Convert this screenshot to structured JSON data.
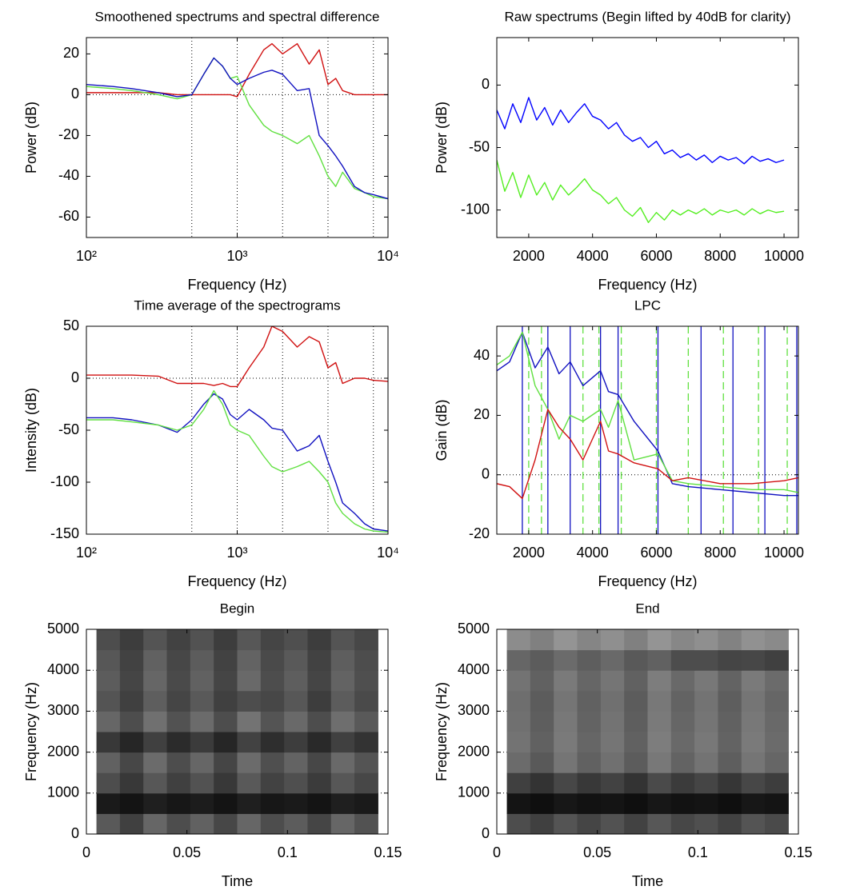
{
  "chart_data": [
    {
      "type": "line",
      "title": "Smoothened spectrums and spectral difference",
      "xlabel": "Frequency (Hz)",
      "ylabel": "Power (dB)",
      "xscale": "log",
      "xlim": [
        100,
        10000
      ],
      "xticks": [
        {
          "value": 100,
          "label": "10²"
        },
        {
          "value": 1000,
          "label": "10³"
        },
        {
          "value": 10000,
          "label": "10⁴"
        }
      ],
      "ylim": [
        -70,
        28
      ],
      "yticks": [
        20,
        0,
        -20,
        -40,
        -60
      ],
      "vlines": [
        500,
        1000,
        2000,
        4000,
        8000
      ],
      "hlines": [
        0
      ],
      "x": [
        100,
        150,
        200,
        300,
        400,
        500,
        600,
        700,
        800,
        900,
        1000,
        1200,
        1500,
        1700,
        2000,
        2500,
        3000,
        3500,
        4000,
        4500,
        5000,
        6000,
        7000,
        8000,
        10000
      ],
      "series": [
        {
          "color": "#d01010",
          "values": [
            1,
            1,
            1,
            1,
            0,
            0,
            0,
            0,
            0,
            0,
            -1,
            10,
            22,
            25,
            20,
            25,
            15,
            22,
            5,
            8,
            2,
            0,
            0,
            0,
            0
          ]
        },
        {
          "color": "#60e040",
          "values": [
            4,
            3,
            2,
            0,
            -2,
            0,
            10,
            18,
            14,
            8,
            9,
            -5,
            -15,
            -18,
            -20,
            -24,
            -20,
            -30,
            -40,
            -45,
            -38,
            -46,
            -48,
            -50,
            -51
          ]
        },
        {
          "color": "#1010c0",
          "values": [
            5,
            4,
            3,
            1,
            -1,
            0,
            10,
            18,
            14,
            8,
            5,
            8,
            11,
            12,
            10,
            2,
            3,
            -20,
            -25,
            -30,
            -35,
            -45,
            -48,
            -49,
            -51
          ]
        }
      ]
    },
    {
      "type": "line",
      "title": "Raw spectrums (Begin lifted by 40dB for clarity)",
      "xlabel": "Frequency (Hz)",
      "ylabel": "Power (dB)",
      "xlim": [
        1000,
        10450
      ],
      "xticks": [
        2000,
        4000,
        6000,
        8000,
        10000
      ],
      "ylim": [
        -122,
        38
      ],
      "yticks": [
        0,
        -50,
        -100
      ],
      "x": [
        1000,
        1250,
        1500,
        1750,
        2000,
        2250,
        2500,
        2750,
        3000,
        3250,
        3500,
        3750,
        4000,
        4250,
        4500,
        4750,
        5000,
        5250,
        5500,
        5750,
        6000,
        6250,
        6500,
        6750,
        7000,
        7250,
        7500,
        7750,
        8000,
        8250,
        8500,
        8750,
        9000,
        9250,
        9500,
        9750,
        10000
      ],
      "series": [
        {
          "color": "#0000ff",
          "values": [
            -20,
            -35,
            -15,
            -30,
            -10,
            -28,
            -18,
            -32,
            -20,
            -30,
            -22,
            -15,
            -25,
            -28,
            -35,
            -30,
            -40,
            -45,
            -42,
            -50,
            -45,
            -55,
            -52,
            -58,
            -55,
            -60,
            -56,
            -62,
            -57,
            -60,
            -58,
            -63,
            -57,
            -61,
            -59,
            -62,
            -60
          ]
        },
        {
          "color": "#55ee22",
          "values": [
            -60,
            -85,
            -70,
            -90,
            -72,
            -88,
            -78,
            -92,
            -80,
            -88,
            -82,
            -75,
            -84,
            -88,
            -95,
            -90,
            -100,
            -105,
            -98,
            -110,
            -102,
            -108,
            -100,
            -104,
            -100,
            -103,
            -99,
            -104,
            -100,
            -102,
            -100,
            -104,
            -99,
            -103,
            -100,
            -102,
            -101
          ]
        }
      ]
    },
    {
      "type": "line",
      "title": "Time average of the spectrograms",
      "xlabel": "Frequency (Hz)",
      "ylabel": "Intensity (dB)",
      "xscale": "log",
      "xlim": [
        100,
        10000
      ],
      "xticks": [
        {
          "value": 100,
          "label": "10²"
        },
        {
          "value": 1000,
          "label": "10³"
        },
        {
          "value": 10000,
          "label": "10⁴"
        }
      ],
      "ylim": [
        -150,
        50
      ],
      "yticks": [
        50,
        0,
        -50,
        -100,
        -150
      ],
      "vlines": [
        500,
        1000,
        2000,
        4000,
        8000
      ],
      "hlines": [
        0
      ],
      "x": [
        100,
        150,
        200,
        300,
        400,
        500,
        600,
        700,
        800,
        900,
        1000,
        1200,
        1500,
        1700,
        2000,
        2500,
        3000,
        3500,
        4000,
        4500,
        5000,
        6000,
        7000,
        8000,
        10000
      ],
      "series": [
        {
          "color": "#d01010",
          "values": [
            3,
            3,
            3,
            2,
            -5,
            -5,
            -5,
            -7,
            -5,
            -8,
            -8,
            10,
            30,
            50,
            45,
            30,
            40,
            35,
            10,
            15,
            -5,
            0,
            0,
            -2,
            -3
          ]
        },
        {
          "color": "#1010c0",
          "values": [
            -38,
            -38,
            -40,
            -45,
            -52,
            -40,
            -25,
            -15,
            -20,
            -35,
            -40,
            -30,
            -40,
            -48,
            -50,
            -70,
            -65,
            -55,
            -80,
            -100,
            -120,
            -130,
            -140,
            -145,
            -147
          ]
        },
        {
          "color": "#60e040",
          "values": [
            -40,
            -40,
            -42,
            -45,
            -50,
            -45,
            -30,
            -12,
            -25,
            -45,
            -50,
            -55,
            -75,
            -85,
            -90,
            -85,
            -80,
            -90,
            -100,
            -120,
            -130,
            -140,
            -145,
            -147,
            -148
          ]
        }
      ]
    },
    {
      "type": "line",
      "title": "LPC",
      "xlabel": "Frequency (Hz)",
      "ylabel": "Gain (dB)",
      "xlim": [
        1000,
        10450
      ],
      "xticks": [
        2000,
        4000,
        6000,
        8000,
        10000
      ],
      "ylim": [
        -20,
        50
      ],
      "yticks": [
        40,
        20,
        0,
        -20
      ],
      "hlines": [
        0
      ],
      "vline_series": [
        {
          "color": "#1010c0",
          "style": "solid",
          "values": [
            1800,
            2600,
            3300,
            4250,
            4800,
            6050,
            7400,
            8400,
            9400,
            10400
          ]
        },
        {
          "color": "#60e040",
          "style": "dashed",
          "values": [
            2000,
            2400,
            3700,
            4200,
            4900,
            6000,
            7000,
            8100,
            9200,
            10100
          ]
        }
      ],
      "x": [
        1000,
        1400,
        1800,
        2200,
        2600,
        2950,
        3300,
        3700,
        4250,
        4500,
        4800,
        5300,
        6050,
        6500,
        7000,
        8000,
        9000,
        10000,
        10450
      ],
      "series": [
        {
          "color": "#1010c0",
          "values": [
            35,
            38,
            48,
            36,
            43,
            34,
            38,
            30,
            35,
            28,
            27,
            18,
            8,
            -3,
            -4,
            -5,
            -6,
            -7,
            -7
          ]
        },
        {
          "color": "#60e040",
          "values": [
            37,
            40,
            48,
            30,
            22,
            12,
            20,
            18,
            22,
            16,
            25,
            5,
            7,
            -2,
            -3,
            -4,
            -5,
            -5,
            -6
          ]
        },
        {
          "color": "#d01010",
          "values": [
            -3,
            -4,
            -8,
            5,
            22,
            16,
            12,
            5,
            18,
            8,
            7,
            4,
            2,
            -2,
            -1,
            -3,
            -3,
            -2,
            -1
          ]
        }
      ]
    },
    {
      "type": "heatmap",
      "title": "Begin",
      "xlabel": "Time",
      "ylabel": "Frequency (Hz)",
      "xlim": [
        0,
        0.15
      ],
      "xticks": [
        0,
        0.05,
        0.1,
        0.15
      ],
      "ylim": [
        0,
        5000
      ],
      "yticks": [
        0,
        1000,
        2000,
        3000,
        4000,
        5000
      ],
      "grid": true,
      "x_edges": [
        0.005,
        0.145
      ],
      "y_edges": [
        0,
        5000
      ],
      "z": [
        [
          0.35,
          0.25,
          0.4,
          0.3,
          0.38,
          0.28,
          0.4,
          0.3,
          0.36,
          0.27,
          0.4,
          0.32
        ],
        [
          0.1,
          0.08,
          0.12,
          0.09,
          0.11,
          0.08,
          0.12,
          0.09,
          0.1,
          0.08,
          0.12,
          0.1
        ],
        [
          0.3,
          0.22,
          0.34,
          0.25,
          0.32,
          0.22,
          0.35,
          0.26,
          0.31,
          0.23,
          0.34,
          0.28
        ],
        [
          0.38,
          0.28,
          0.42,
          0.3,
          0.4,
          0.27,
          0.42,
          0.31,
          0.39,
          0.28,
          0.41,
          0.33
        ],
        [
          0.22,
          0.15,
          0.25,
          0.17,
          0.23,
          0.15,
          0.26,
          0.18,
          0.24,
          0.16,
          0.25,
          0.2
        ],
        [
          0.4,
          0.3,
          0.44,
          0.32,
          0.42,
          0.3,
          0.45,
          0.33,
          0.41,
          0.3,
          0.43,
          0.35
        ],
        [
          0.33,
          0.25,
          0.37,
          0.27,
          0.35,
          0.25,
          0.3,
          0.28,
          0.34,
          0.24,
          0.36,
          0.29
        ],
        [
          0.36,
          0.27,
          0.4,
          0.29,
          0.38,
          0.27,
          0.41,
          0.3,
          0.37,
          0.27,
          0.39,
          0.31
        ],
        [
          0.34,
          0.26,
          0.38,
          0.28,
          0.36,
          0.26,
          0.39,
          0.29,
          0.35,
          0.26,
          0.37,
          0.3
        ],
        [
          0.3,
          0.24,
          0.33,
          0.26,
          0.32,
          0.24,
          0.34,
          0.27,
          0.31,
          0.24,
          0.33,
          0.28
        ]
      ]
    },
    {
      "type": "heatmap",
      "title": "End",
      "xlabel": "Time",
      "ylabel": "Frequency (Hz)",
      "xlim": [
        0,
        0.15
      ],
      "xticks": [
        0,
        0.05,
        0.1,
        0.15
      ],
      "ylim": [
        0,
        5000
      ],
      "yticks": [
        0,
        1000,
        2000,
        3000,
        4000,
        5000
      ],
      "grid": true,
      "x_edges": [
        0.005,
        0.145
      ],
      "y_edges": [
        0,
        5000
      ],
      "z": [
        [
          0.3,
          0.25,
          0.33,
          0.27,
          0.32,
          0.26,
          0.34,
          0.28,
          0.31,
          0.26,
          0.33,
          0.29
        ],
        [
          0.08,
          0.06,
          0.09,
          0.07,
          0.08,
          0.06,
          0.09,
          0.07,
          0.08,
          0.06,
          0.09,
          0.08
        ],
        [
          0.25,
          0.2,
          0.28,
          0.22,
          0.26,
          0.2,
          0.29,
          0.23,
          0.27,
          0.21,
          0.28,
          0.24
        ],
        [
          0.42,
          0.35,
          0.46,
          0.38,
          0.44,
          0.36,
          0.47,
          0.39,
          0.45,
          0.37,
          0.46,
          0.4
        ],
        [
          0.45,
          0.38,
          0.48,
          0.4,
          0.46,
          0.38,
          0.49,
          0.41,
          0.47,
          0.39,
          0.48,
          0.42
        ],
        [
          0.44,
          0.37,
          0.47,
          0.39,
          0.45,
          0.37,
          0.48,
          0.4,
          0.46,
          0.38,
          0.47,
          0.41
        ],
        [
          0.43,
          0.36,
          0.46,
          0.38,
          0.44,
          0.36,
          0.47,
          0.39,
          0.45,
          0.37,
          0.46,
          0.4
        ],
        [
          0.45,
          0.38,
          0.48,
          0.4,
          0.46,
          0.38,
          0.49,
          0.41,
          0.47,
          0.39,
          0.48,
          0.42
        ],
        [
          0.4,
          0.36,
          0.42,
          0.37,
          0.41,
          0.35,
          0.38,
          0.3,
          0.3,
          0.27,
          0.28,
          0.25
        ],
        [
          0.55,
          0.5,
          0.58,
          0.52,
          0.56,
          0.5,
          0.58,
          0.53,
          0.56,
          0.51,
          0.57,
          0.54
        ]
      ]
    }
  ]
}
